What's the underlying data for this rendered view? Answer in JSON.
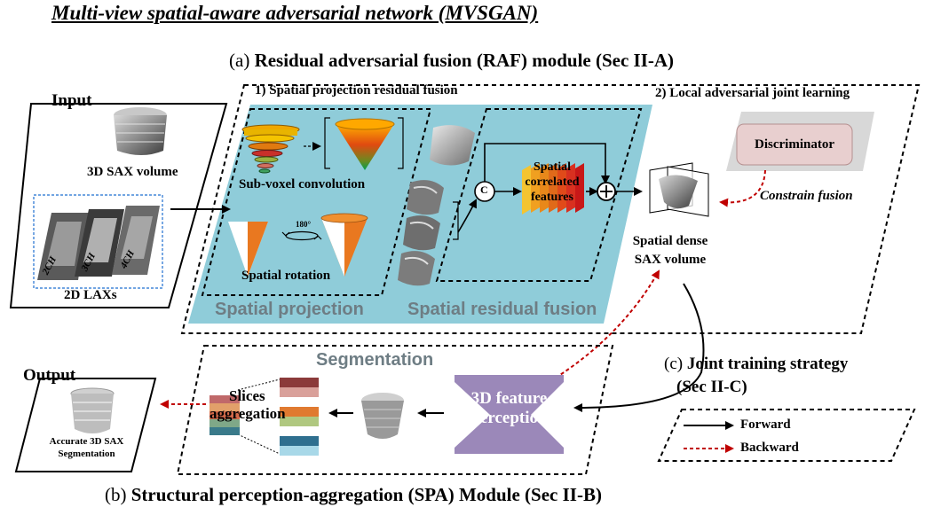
{
  "title": "Multi-view spatial-aware adversarial network (MVSGAN)",
  "raf": {
    "prefix": "(a)",
    "title": "Residual adversarial fusion (RAF) module (Sec II-A)",
    "sub1": "1) Spatial projection residual fusion",
    "sub2": "2) Local adversarial joint learning",
    "sub_voxel": "Sub-voxel convolution",
    "rotation_deg": "180°",
    "spatial_rotation": "Spatial rotation",
    "spatial_projection": "Spatial projection",
    "spatial_residual_fusion": "Spatial residual fusion",
    "concat_symbol": "C",
    "features": [
      "Spatial",
      "correlated",
      "features"
    ],
    "discriminator": "Discriminator",
    "constrain_fusion": "Constrain fusion",
    "dense_volume": [
      "Spatial dense",
      "SAX volume"
    ]
  },
  "input": {
    "label": "Input",
    "sax_volume": "3D SAX volume",
    "views": [
      "2CH",
      "3CH",
      "4CH"
    ],
    "lax": "2D LAXs"
  },
  "spa": {
    "prefix": "(b)",
    "title": "Structural perception-aggregation (SPA) Module (Sec II-B)",
    "segmentation": "Segmentation",
    "feature_perception": [
      "3D feature",
      "perception"
    ],
    "slices_aggregation": [
      "Slices",
      "aggregation"
    ]
  },
  "output": {
    "label": "Output",
    "result": [
      "Accurate 3D SAX",
      "Segmentation"
    ]
  },
  "joint": {
    "prefix": "(c)",
    "title": "Joint training strategy",
    "sec": "(Sec II-C)"
  },
  "legend": {
    "forward": "Forward",
    "backward": "Backward"
  },
  "colors": {
    "panel_blue": "#8fccd9",
    "feature_purple": "#9b88b9",
    "discriminator_fill": "#e8cfcf",
    "backward_red": "#c00000"
  }
}
